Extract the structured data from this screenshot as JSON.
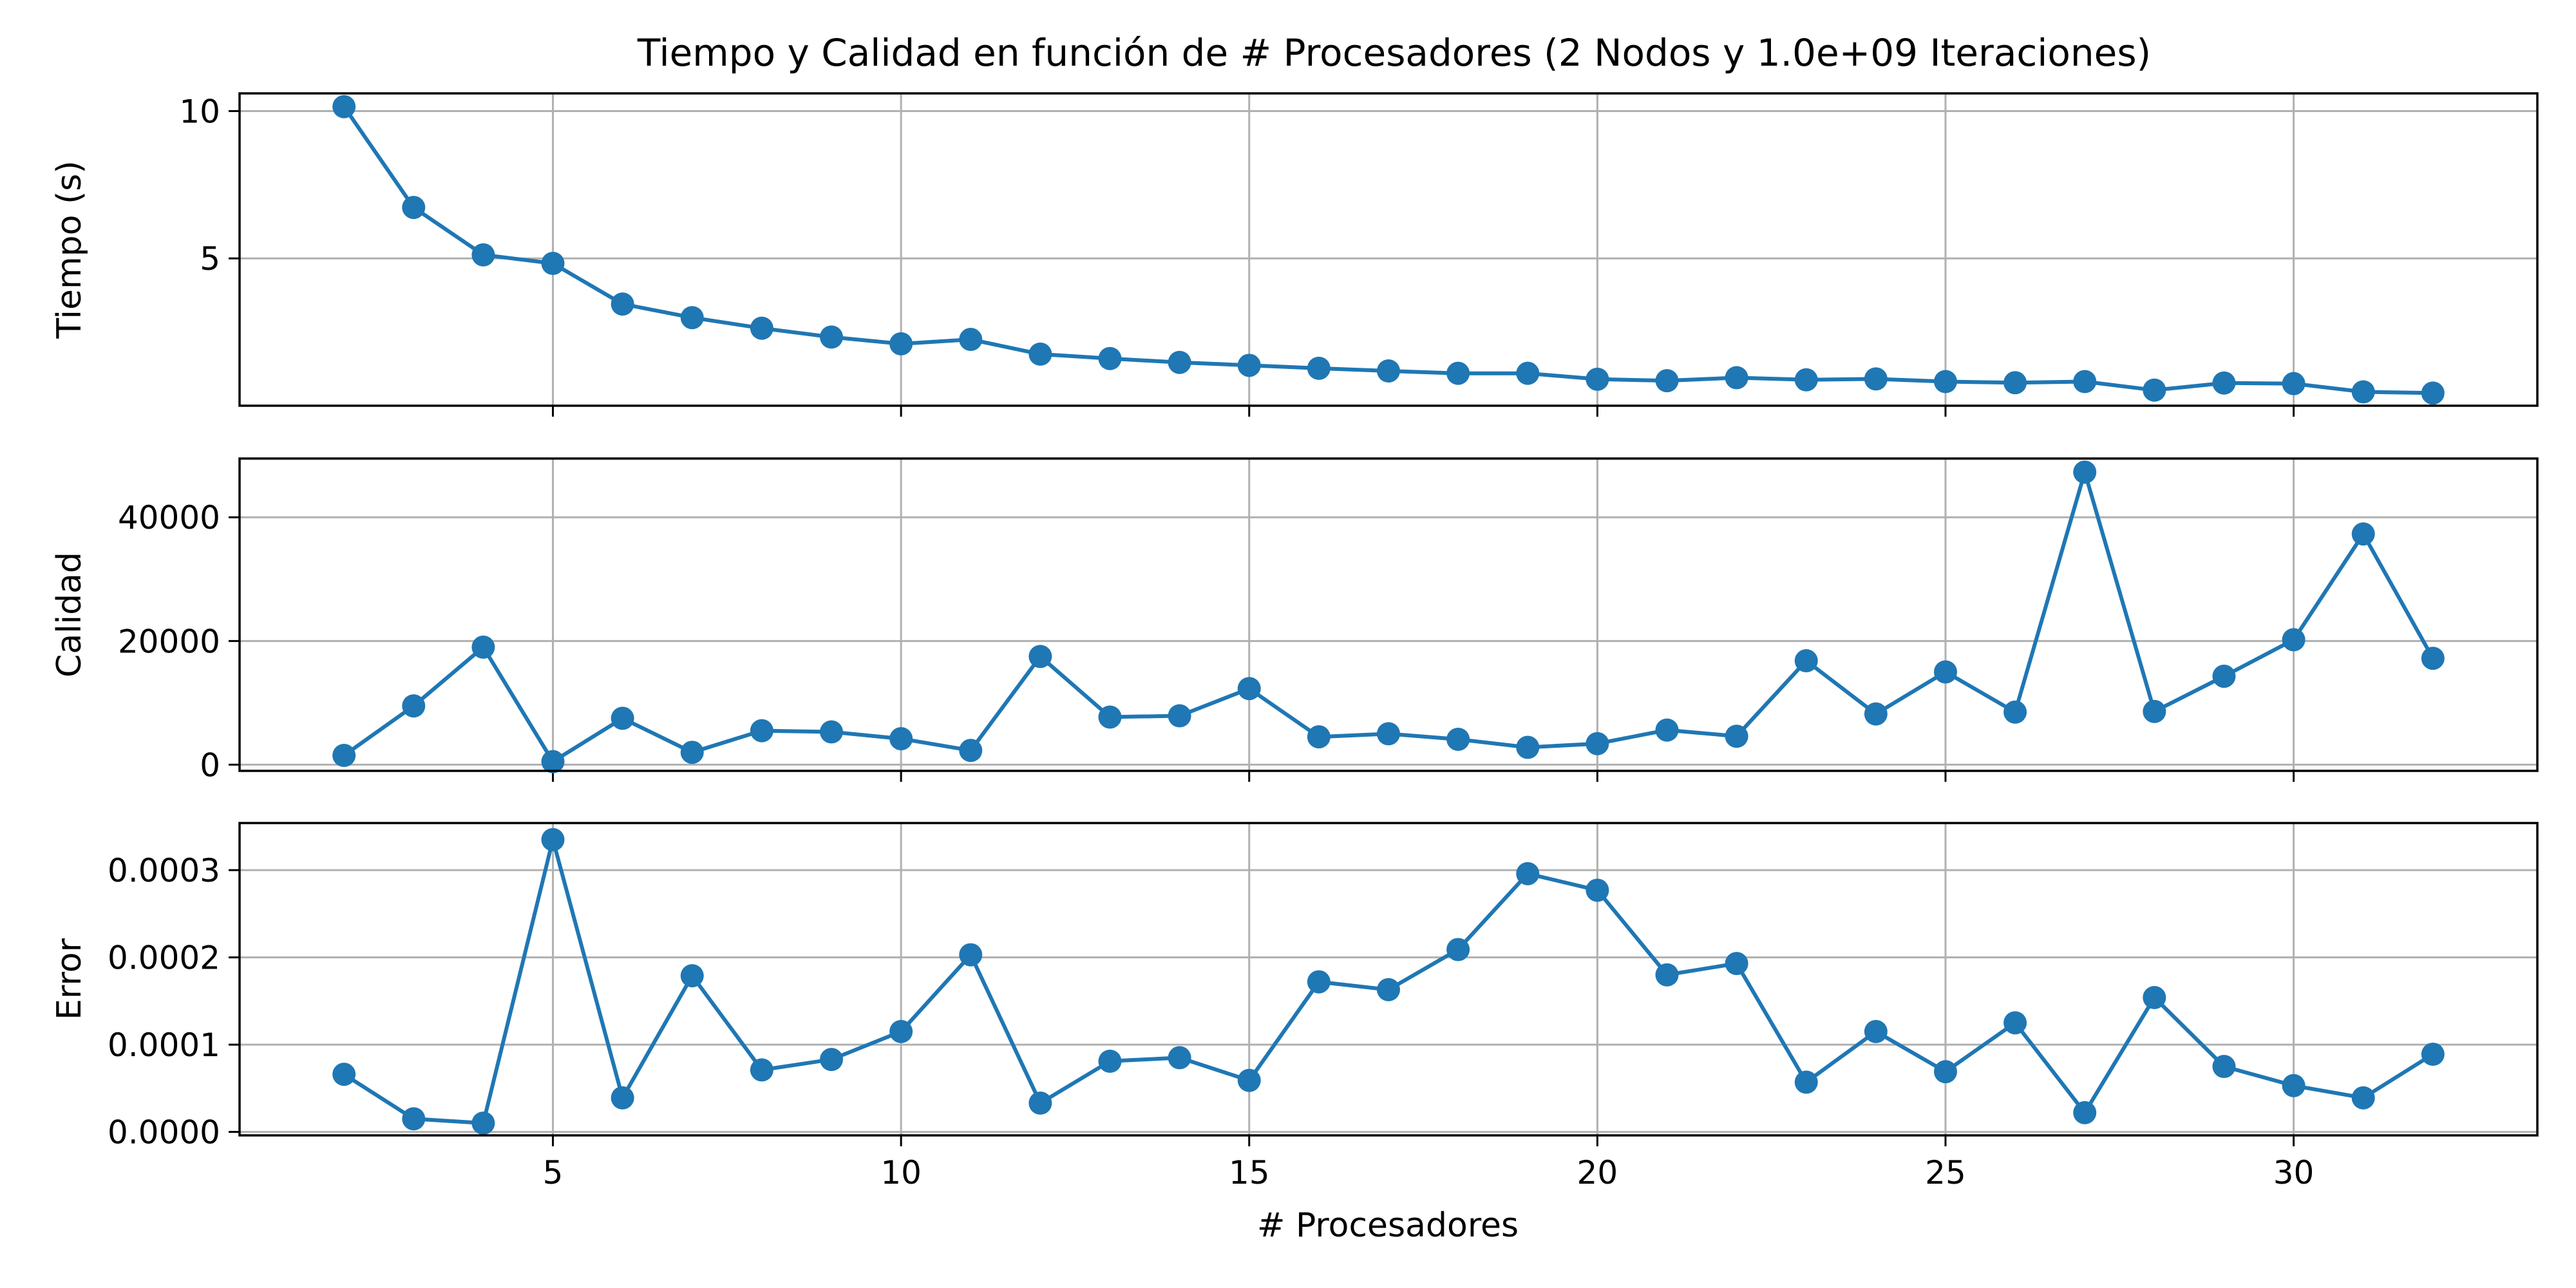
{
  "title": "Tiempo y Calidad en función de # Procesadores (2 Nodos y 1.0e+09 Iteraciones)",
  "xlabel": "# Procesadores",
  "line_color": "#1f77b4",
  "chart_data": [
    {
      "type": "line",
      "title": "Tiempo y Calidad en función de # Procesadores (2 Nodos y 1.0e+09 Iteraciones)",
      "xlabel": "",
      "ylabel": "Tiempo (s)",
      "xlim": [
        0.5,
        33.5
      ],
      "ylim": [
        0.0,
        10.6
      ],
      "xticks": [
        5,
        10,
        15,
        20,
        25,
        30
      ],
      "yticks": [
        5,
        10
      ],
      "ytick_labels": [
        "5",
        "10"
      ],
      "grid": true,
      "x": [
        2,
        3,
        4,
        5,
        6,
        7,
        8,
        9,
        10,
        11,
        12,
        13,
        14,
        15,
        16,
        17,
        18,
        19,
        20,
        21,
        22,
        23,
        24,
        25,
        26,
        27,
        28,
        29,
        30,
        31,
        32
      ],
      "y": [
        10.15,
        6.73,
        5.12,
        4.83,
        3.45,
        2.99,
        2.63,
        2.33,
        2.1,
        2.25,
        1.75,
        1.6,
        1.47,
        1.37,
        1.27,
        1.18,
        1.1,
        1.1,
        0.9,
        0.85,
        0.95,
        0.88,
        0.91,
        0.82,
        0.78,
        0.82,
        0.53,
        0.77,
        0.75,
        0.47,
        0.43
      ]
    },
    {
      "type": "line",
      "xlabel": "",
      "ylabel": "Calidad",
      "xlim": [
        0.5,
        33.5
      ],
      "ylim": [
        -1000,
        49500
      ],
      "xticks": [
        5,
        10,
        15,
        20,
        25,
        30
      ],
      "yticks": [
        0,
        20000,
        40000
      ],
      "ytick_labels": [
        "0",
        "20000",
        "40000"
      ],
      "grid": true,
      "x": [
        2,
        3,
        4,
        5,
        6,
        7,
        8,
        9,
        10,
        11,
        12,
        13,
        14,
        15,
        16,
        17,
        18,
        19,
        20,
        21,
        22,
        23,
        24,
        25,
        26,
        27,
        28,
        29,
        30,
        31,
        32
      ],
      "y": [
        1500,
        9500,
        19000,
        500,
        7500,
        2000,
        5500,
        5300,
        4200,
        2300,
        17500,
        7700,
        7900,
        12300,
        4500,
        5000,
        4100,
        2800,
        3400,
        5600,
        4600,
        16800,
        8200,
        15000,
        8500,
        47300,
        8600,
        14300,
        20200,
        37300,
        17200
      ]
    },
    {
      "type": "line",
      "xlabel": "# Procesadores",
      "ylabel": "Error",
      "xlim": [
        0.5,
        33.5
      ],
      "ylim": [
        -4e-06,
        0.000354
      ],
      "xticks": [
        5,
        10,
        15,
        20,
        25,
        30
      ],
      "xtick_labels": [
        "5",
        "10",
        "15",
        "20",
        "25",
        "30"
      ],
      "yticks": [
        0,
        0.0001,
        0.0002,
        0.0003
      ],
      "ytick_labels": [
        "0.0000",
        "0.0001",
        "0.0002",
        "0.0003"
      ],
      "grid": true,
      "x": [
        2,
        3,
        4,
        5,
        6,
        7,
        8,
        9,
        10,
        11,
        12,
        13,
        14,
        15,
        16,
        17,
        18,
        19,
        20,
        21,
        22,
        23,
        24,
        25,
        26,
        27,
        28,
        29,
        30,
        31,
        32
      ],
      "y": [
        6.6e-05,
        1.5e-05,
        1e-05,
        0.000335,
        3.9e-05,
        0.000179,
        7.1e-05,
        8.3e-05,
        0.000115,
        0.000203,
        3.3e-05,
        8.1e-05,
        8.5e-05,
        5.9e-05,
        0.000172,
        0.000163,
        0.000209,
        0.000296,
        0.000277,
        0.00018,
        0.000193,
        5.7e-05,
        0.000115,
        6.9e-05,
        0.000125,
        2.2e-05,
        0.000154,
        7.5e-05,
        5.3e-05,
        3.9e-05,
        8.9e-05
      ]
    }
  ]
}
